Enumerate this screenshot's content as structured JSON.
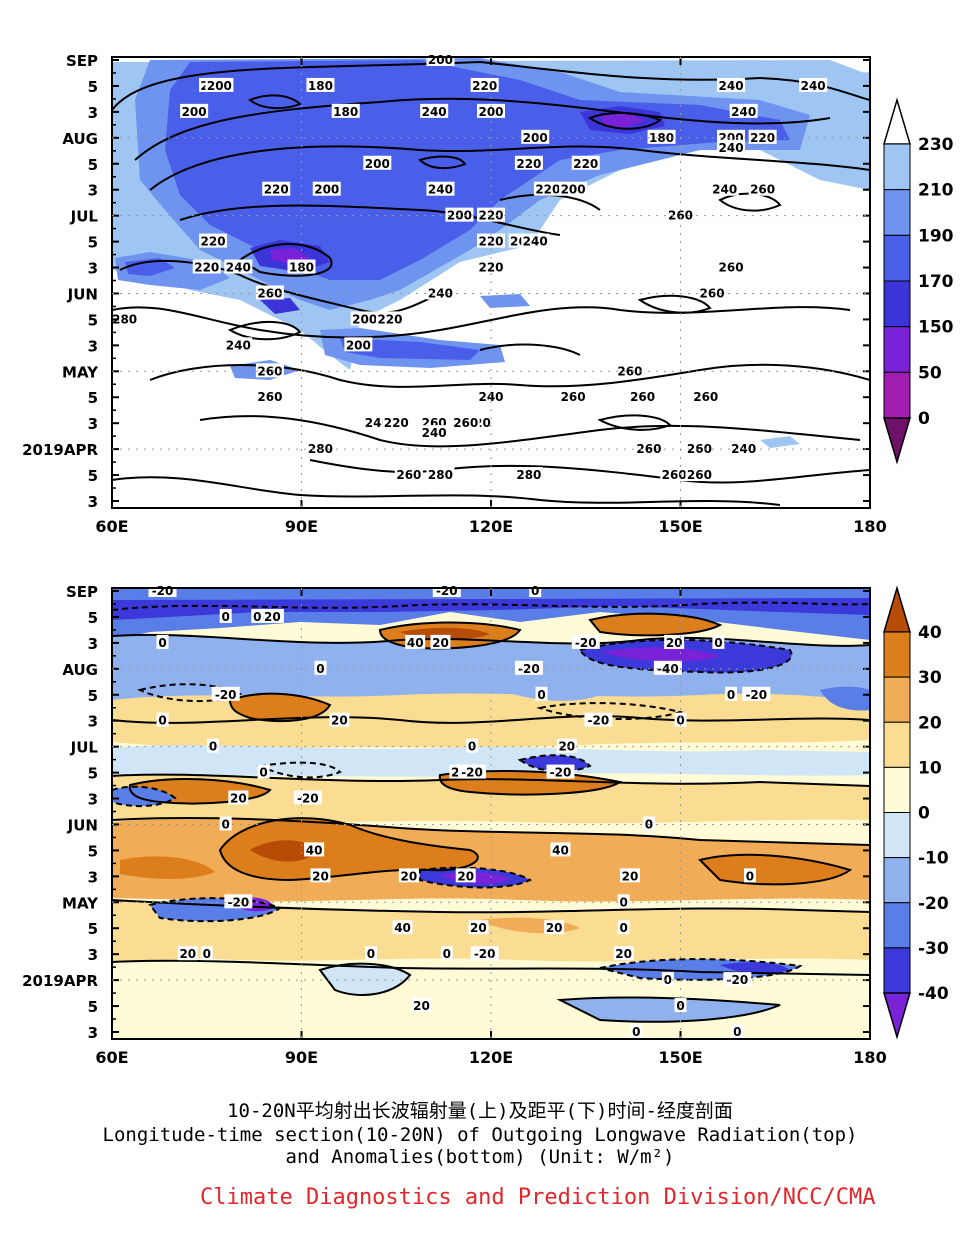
{
  "chart_data": [
    {
      "type": "heatmap",
      "title": "",
      "xlabel": "",
      "ylabel": "",
      "x_ticks": [
        "60E",
        "90E",
        "120E",
        "150E",
        "180"
      ],
      "y_ticks": [
        "SEP",
        "5",
        "3",
        "AUG",
        "5",
        "3",
        "JUL",
        "5",
        "3",
        "JUN",
        "5",
        "3",
        "MAY",
        "5",
        "3",
        "2019APR",
        "5",
        "3"
      ],
      "xlim": [
        60,
        180
      ],
      "colorbar_levels": [
        "230",
        "210",
        "190",
        "170",
        "150",
        "50",
        "0"
      ],
      "colorbar_colors": [
        "#9fc6f3",
        "#6f94f0",
        "#4a5fe9",
        "#3b35d9",
        "#7a22d8",
        "#a11db0",
        "#6e1269"
      ],
      "contour_labels": [
        {
          "text": "200",
          "x": 112,
          "y": "SEP"
        },
        {
          "text": "220",
          "x": 76,
          "y": "5"
        },
        {
          "text": "200",
          "x": 77,
          "y": "5"
        },
        {
          "text": "180",
          "x": 93,
          "y": "5"
        },
        {
          "text": "220",
          "x": 119,
          "y": "5"
        },
        {
          "text": "240",
          "x": 158,
          "y": "5"
        },
        {
          "text": "240",
          "x": 171,
          "y": "5"
        },
        {
          "text": "240",
          "x": 160,
          "y": "3"
        },
        {
          "text": "200",
          "x": 73,
          "y": "3"
        },
        {
          "text": "180",
          "x": 97,
          "y": "3"
        },
        {
          "text": "240",
          "x": 111,
          "y": "3"
        },
        {
          "text": "200",
          "x": 120,
          "y": "3"
        },
        {
          "text": "180",
          "x": 147,
          "y": "AUG"
        },
        {
          "text": "200",
          "x": 127,
          "y": "AUG"
        },
        {
          "text": "200",
          "x": 158,
          "y": "AUG"
        },
        {
          "text": "240",
          "x": 158,
          "y": "AUG"
        },
        {
          "text": "220",
          "x": 163,
          "y": "AUG"
        },
        {
          "text": "220",
          "x": 135,
          "y": "5"
        },
        {
          "text": "200",
          "x": 102,
          "y": "5"
        },
        {
          "text": "220",
          "x": 126,
          "y": "5"
        },
        {
          "text": "240",
          "x": 157,
          "y": "3"
        },
        {
          "text": "220",
          "x": 86,
          "y": "3"
        },
        {
          "text": "200",
          "x": 94,
          "y": "3"
        },
        {
          "text": "240",
          "x": 112,
          "y": "3"
        },
        {
          "text": "220",
          "x": 129,
          "y": "3"
        },
        {
          "text": "200",
          "x": 133,
          "y": "3"
        },
        {
          "text": "260",
          "x": 163,
          "y": "3"
        },
        {
          "text": "200",
          "x": 115,
          "y": "JUL"
        },
        {
          "text": "220",
          "x": 120,
          "y": "JUL"
        },
        {
          "text": "260",
          "x": 150,
          "y": "JUL"
        },
        {
          "text": "220",
          "x": 76,
          "y": "5"
        },
        {
          "text": "220",
          "x": 120,
          "y": "5"
        },
        {
          "text": "260",
          "x": 125,
          "y": "5"
        },
        {
          "text": "240",
          "x": 127,
          "y": "5"
        },
        {
          "text": "240",
          "x": 80,
          "y": "3"
        },
        {
          "text": "180",
          "x": 90,
          "y": "3"
        },
        {
          "text": "220",
          "x": 120,
          "y": "3"
        },
        {
          "text": "260",
          "x": 158,
          "y": "3"
        },
        {
          "text": "220",
          "x": 75,
          "y": "3"
        },
        {
          "text": "240",
          "x": 80,
          "y": "3"
        },
        {
          "text": "200",
          "x": 99,
          "y": "3"
        },
        {
          "text": "240",
          "x": 112,
          "y": "JUN"
        },
        {
          "text": "260",
          "x": 85,
          "y": "JUN"
        },
        {
          "text": "260",
          "x": 155,
          "y": "JUN"
        },
        {
          "text": "280",
          "x": 62,
          "y": "5"
        },
        {
          "text": "200",
          "x": 100,
          "y": "5"
        },
        {
          "text": "220",
          "x": 104,
          "y": "5"
        },
        {
          "text": "240",
          "x": 120,
          "y": "5"
        },
        {
          "text": "260",
          "x": 144,
          "y": "5"
        },
        {
          "text": "260",
          "x": 154,
          "y": "5"
        },
        {
          "text": "260",
          "x": 133,
          "y": "5"
        },
        {
          "text": "260",
          "x": 111,
          "y": "3"
        },
        {
          "text": "240",
          "x": 111,
          "y": "3"
        },
        {
          "text": "240",
          "x": 102,
          "y": "3"
        },
        {
          "text": "220",
          "x": 105,
          "y": "3"
        },
        {
          "text": "220",
          "x": 118,
          "y": "3"
        },
        {
          "text": "260",
          "x": 142,
          "y": "MAY"
        },
        {
          "text": "260",
          "x": 85,
          "y": "MAY"
        },
        {
          "text": "260",
          "x": 85,
          "y": "5"
        },
        {
          "text": "280",
          "x": 126,
          "y": "5"
        },
        {
          "text": "280",
          "x": 112,
          "y": "5"
        },
        {
          "text": "260",
          "x": 116,
          "y": "3"
        },
        {
          "text": "280",
          "x": 93,
          "y": "2019APR"
        },
        {
          "text": "260",
          "x": 145,
          "y": "2019APR"
        },
        {
          "text": "240",
          "x": 160,
          "y": "2019APR"
        },
        {
          "text": "260",
          "x": 153,
          "y": "2019APR"
        },
        {
          "text": "260",
          "x": 107,
          "y": "5"
        },
        {
          "text": "260",
          "x": 149,
          "y": "5"
        },
        {
          "text": "260",
          "x": 153,
          "y": "5"
        }
      ]
    },
    {
      "type": "heatmap",
      "title": "",
      "xlabel": "",
      "ylabel": "",
      "x_ticks": [
        "60E",
        "90E",
        "120E",
        "150E",
        "180"
      ],
      "y_ticks": [
        "SEP",
        "5",
        "3",
        "AUG",
        "5",
        "3",
        "JUL",
        "5",
        "3",
        "JUN",
        "5",
        "3",
        "MAY",
        "5",
        "3",
        "2019APR",
        "5",
        "3"
      ],
      "xlim": [
        60,
        180
      ],
      "colorbar_levels": [
        "40",
        "30",
        "20",
        "10",
        "0",
        "-10",
        "-20",
        "-30",
        "-40"
      ],
      "colorbar_colors": [
        "#b64c05",
        "#db7e1b",
        "#f1ac57",
        "#fadc92",
        "#fffbd7",
        "#d0e6f7",
        "#8fb2ee",
        "#5a7ee8",
        "#3b39d9",
        "#7a22d8"
      ],
      "contour_labels": [
        {
          "text": "-20",
          "x": 68,
          "y": "SEP"
        },
        {
          "text": "-20",
          "x": 113,
          "y": "SEP"
        },
        {
          "text": "0",
          "x": 127,
          "y": "SEP"
        },
        {
          "text": "0",
          "x": 78,
          "y": "5"
        },
        {
          "text": "-20",
          "x": 85,
          "y": "5"
        },
        {
          "text": "0",
          "x": 83,
          "y": "5"
        },
        {
          "text": "0",
          "x": 68,
          "y": "3"
        },
        {
          "text": "40",
          "x": 108,
          "y": "3"
        },
        {
          "text": "20",
          "x": 112,
          "y": "3"
        },
        {
          "text": "-20",
          "x": 135,
          "y": "3"
        },
        {
          "text": "20",
          "x": 149,
          "y": "3"
        },
        {
          "text": "0",
          "x": 156,
          "y": "3"
        },
        {
          "text": "-40",
          "x": 148,
          "y": "AUG"
        },
        {
          "text": "0",
          "x": 93,
          "y": "AUG"
        },
        {
          "text": "-20",
          "x": 126,
          "y": "AUG"
        },
        {
          "text": "-20",
          "x": 78,
          "y": "5"
        },
        {
          "text": "0",
          "x": 128,
          "y": "5"
        },
        {
          "text": "0",
          "x": 158,
          "y": "5"
        },
        {
          "text": "-20",
          "x": 162,
          "y": "5"
        },
        {
          "text": "0",
          "x": 68,
          "y": "3"
        },
        {
          "text": "20",
          "x": 96,
          "y": "3"
        },
        {
          "text": "-20",
          "x": 137,
          "y": "3"
        },
        {
          "text": "0",
          "x": 150,
          "y": "3"
        },
        {
          "text": "0",
          "x": 76,
          "y": "JUL"
        },
        {
          "text": "0",
          "x": 117,
          "y": "JUL"
        },
        {
          "text": "20",
          "x": 132,
          "y": "JUL"
        },
        {
          "text": "20",
          "x": 115,
          "y": "5"
        },
        {
          "text": "-20",
          "x": 117,
          "y": "5"
        },
        {
          "text": "0",
          "x": 84,
          "y": "5"
        },
        {
          "text": "-20",
          "x": 131,
          "y": "5"
        },
        {
          "text": "40",
          "x": 131,
          "y": "5"
        },
        {
          "text": "20",
          "x": 80,
          "y": "3"
        },
        {
          "text": "-20",
          "x": 91,
          "y": "3"
        },
        {
          "text": "20",
          "x": 142,
          "y": "3"
        },
        {
          "text": "0",
          "x": 161,
          "y": "3"
        },
        {
          "text": "20",
          "x": 93,
          "y": "3"
        },
        {
          "text": "20",
          "x": 116,
          "y": "3"
        },
        {
          "text": "0",
          "x": 145,
          "y": "JUN"
        },
        {
          "text": "0",
          "x": 78,
          "y": "JUN"
        },
        {
          "text": "40",
          "x": 92,
          "y": "5"
        },
        {
          "text": "40",
          "x": 106,
          "y": "5"
        },
        {
          "text": "20",
          "x": 118,
          "y": "5"
        },
        {
          "text": "0",
          "x": 141,
          "y": "5"
        },
        {
          "text": "20",
          "x": 107,
          "y": "3"
        },
        {
          "text": "0",
          "x": 113,
          "y": "3"
        },
        {
          "text": "-20",
          "x": 119,
          "y": "3"
        },
        {
          "text": "20",
          "x": 72,
          "y": "3"
        },
        {
          "text": "20",
          "x": 141,
          "y": "3"
        },
        {
          "text": "-20",
          "x": 80,
          "y": "MAY"
        },
        {
          "text": "0",
          "x": 141,
          "y": "MAY"
        },
        {
          "text": "20",
          "x": 130,
          "y": "5"
        },
        {
          "text": "20",
          "x": 109,
          "y": "5"
        },
        {
          "text": "0",
          "x": 75,
          "y": "3"
        },
        {
          "text": "0",
          "x": 101,
          "y": "3"
        },
        {
          "text": "0",
          "x": 143,
          "y": "3"
        },
        {
          "text": "-20",
          "x": 159,
          "y": "2019APR"
        },
        {
          "text": "0",
          "x": 148,
          "y": "2019APR"
        },
        {
          "text": "0",
          "x": 150,
          "y": "5"
        },
        {
          "text": "0",
          "x": 159,
          "y": "3"
        }
      ]
    }
  ],
  "caption": {
    "line_cn": "10-20N平均射出长波辐射量(上)及距平(下)时间-经度剖面",
    "line_en1": "Longitude-time section(10-20N) of Outgoing Longwave Radiation(top)",
    "line_en2": "and Anomalies(bottom) (Unit: W/m²)"
  },
  "credit": "Climate Diagnostics and Prediction Division/NCC/CMA"
}
